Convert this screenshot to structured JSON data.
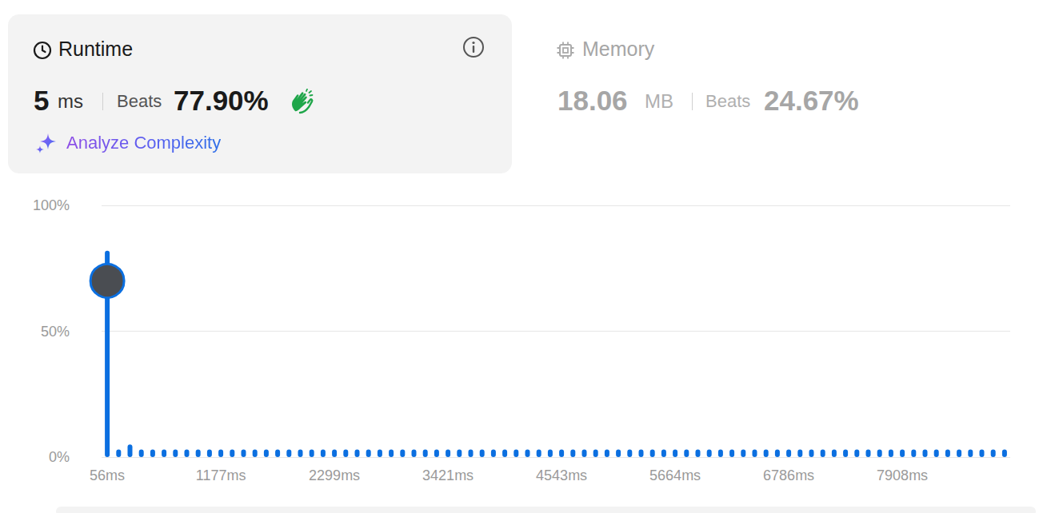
{
  "header": {
    "runtime": {
      "label": "Runtime",
      "value": "5",
      "unit": "ms",
      "beats_label": "Beats",
      "beats": "77.90%",
      "link": "Analyze Complexity"
    },
    "memory": {
      "label": "Memory",
      "value": "18.06",
      "unit": "MB",
      "beats_label": "Beats",
      "beats": "24.67%"
    }
  },
  "chart_data": {
    "type": "bar",
    "categories": [
      "56ms",
      null,
      null,
      null,
      null,
      null,
      null,
      null,
      null,
      null,
      "1177ms",
      null,
      null,
      null,
      null,
      null,
      null,
      null,
      null,
      null,
      "2299ms",
      null,
      null,
      null,
      null,
      null,
      null,
      null,
      null,
      null,
      "3421ms",
      null,
      null,
      null,
      null,
      null,
      null,
      null,
      null,
      null,
      "4543ms",
      null,
      null,
      null,
      null,
      null,
      null,
      null,
      null,
      null,
      "5664ms",
      null,
      null,
      null,
      null,
      null,
      null,
      null,
      null,
      null,
      "6786ms",
      null,
      null,
      null,
      null,
      null,
      null,
      null,
      null,
      null,
      "7908ms",
      null,
      null,
      null,
      null,
      null,
      null,
      null,
      null,
      null
    ],
    "values": [
      82,
      3,
      5,
      3,
      3,
      3,
      3,
      3,
      3,
      3,
      3,
      3,
      3,
      3,
      3,
      3,
      3,
      3,
      3,
      3,
      3,
      3,
      3,
      3,
      3,
      3,
      3,
      3,
      3,
      3,
      3,
      3,
      3,
      3,
      3,
      3,
      3,
      3,
      3,
      3,
      3,
      3,
      3,
      3,
      3,
      3,
      3,
      3,
      3,
      3,
      3,
      3,
      3,
      3,
      3,
      3,
      3,
      3,
      3,
      3,
      3,
      3,
      3,
      3,
      3,
      3,
      3,
      3,
      3,
      3,
      3,
      3,
      3,
      3,
      3,
      3,
      3,
      3,
      3,
      3
    ],
    "color": "#0b6fe0",
    "ylim": [
      0,
      100
    ],
    "yticks": [
      {
        "value": 0,
        "label": "0%"
      },
      {
        "value": 50,
        "label": "50%"
      },
      {
        "value": 100,
        "label": "100%"
      }
    ],
    "grid": true,
    "highlight": {
      "index": 0,
      "value": 70
    }
  }
}
